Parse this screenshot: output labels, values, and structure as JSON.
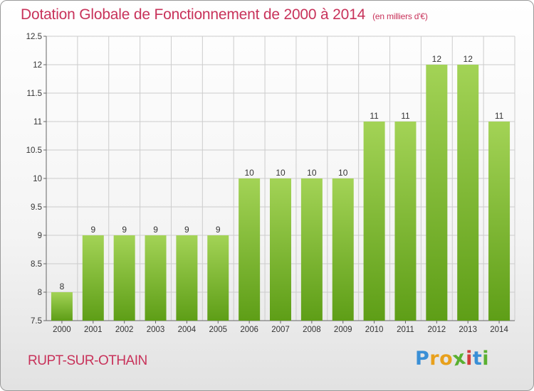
{
  "chart_data": {
    "type": "bar",
    "title": "Dotation Globale de Fonctionnement de 2000 à 2014",
    "subtitle": "(en milliers d'€)",
    "xlabel": "",
    "ylabel": "",
    "categories": [
      "2000",
      "2001",
      "2002",
      "2003",
      "2004",
      "2005",
      "2006",
      "2007",
      "2008",
      "2009",
      "2010",
      "2011",
      "2012",
      "2013",
      "2014"
    ],
    "values": [
      8,
      9,
      9,
      9,
      9,
      9,
      10,
      10,
      10,
      10,
      11,
      11,
      12,
      12,
      11
    ],
    "data_labels": [
      "8",
      "9",
      "9",
      "9",
      "9",
      "9",
      "10",
      "10",
      "10",
      "10",
      "11",
      "11",
      "12",
      "12",
      "11"
    ],
    "ylim": [
      7.5,
      12.5
    ],
    "yticks": [
      7.5,
      8,
      8.5,
      9,
      9.5,
      10,
      10.5,
      11,
      11.5,
      12,
      12.5
    ],
    "ytick_labels": [
      "7.5",
      "8",
      "8.5",
      "9",
      "9.5",
      "10",
      "10.5",
      "11",
      "11.5",
      "12",
      "12.5"
    ],
    "grid": true,
    "legend": "none",
    "colors": {
      "bar_light": "#a3d356",
      "bar_dark": "#5e9e17",
      "grid": "#cccccc",
      "title": "#c8325a"
    }
  },
  "footer": {
    "commune": "RUPT-SUR-OTHAIN",
    "brand_letters": [
      "P",
      "r",
      "o",
      "x",
      "i",
      "t",
      "i"
    ],
    "brand_colors": [
      "#3a8fd6",
      "#e8a01c",
      "#e8a01c",
      "#5ab031",
      "#d23c3c",
      "#3a8fd6",
      "#5ab031"
    ]
  }
}
